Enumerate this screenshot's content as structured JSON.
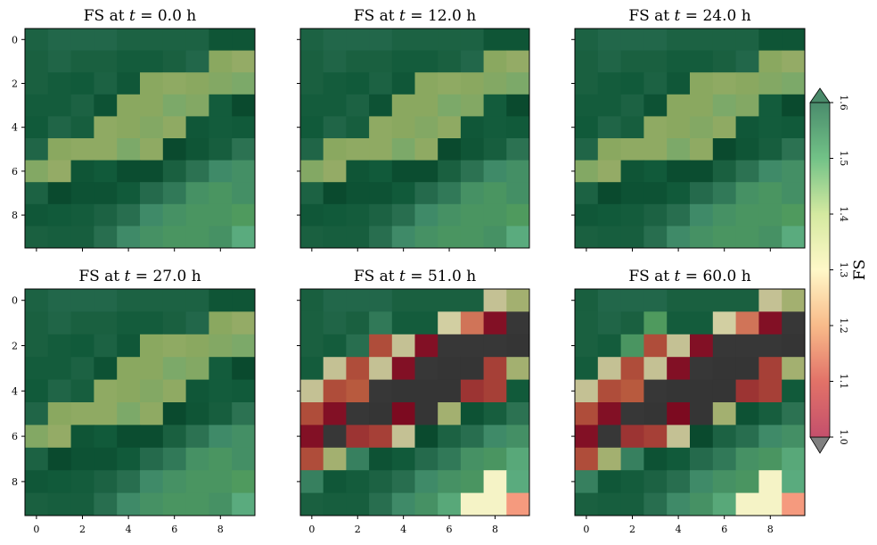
{
  "chart_data": {
    "type": "heatmap",
    "colorbar": {
      "label": "FS",
      "range": [
        1.0,
        1.6
      ],
      "ticks": [
        "1.0",
        "1.1",
        "1.2",
        "1.3",
        "1.4",
        "1.5",
        "1.6"
      ],
      "extend": "both",
      "under_color": "#808080",
      "over_color": "#4a8a6a"
    },
    "x_ticks": [
      "0",
      "2",
      "4",
      "6",
      "8"
    ],
    "y_ticks": [
      "0",
      "2",
      "4",
      "6",
      "8"
    ],
    "panels": [
      {
        "title": {
          "prefix": "FS at ",
          "var": "t",
          "suffix": " = 0.0 h"
        },
        "values": [
          [
            1.85,
            1.8,
            1.8,
            1.8,
            1.85,
            1.85,
            1.85,
            1.85,
            1.98,
            1.98
          ],
          [
            1.87,
            1.82,
            1.87,
            1.87,
            1.92,
            1.92,
            1.87,
            1.8,
            1.45,
            1.43
          ],
          [
            1.87,
            1.92,
            1.95,
            1.85,
            1.97,
            1.45,
            1.44,
            1.45,
            1.46,
            1.47
          ],
          [
            1.92,
            1.92,
            1.85,
            2.0,
            1.45,
            1.45,
            1.47,
            1.46,
            1.93,
            2.05
          ],
          [
            1.95,
            1.82,
            1.9,
            1.44,
            1.45,
            1.46,
            1.44,
            1.97,
            1.93,
            1.95
          ],
          [
            1.82,
            1.45,
            1.44,
            1.44,
            1.47,
            1.44,
            2.05,
            1.98,
            1.9,
            1.72
          ],
          [
            1.46,
            1.43,
            1.98,
            1.95,
            2.03,
            2.03,
            1.87,
            1.72,
            1.65,
            1.63
          ],
          [
            1.85,
            2.05,
            2.0,
            2.0,
            1.95,
            1.78,
            1.7,
            1.62,
            1.6,
            1.63
          ],
          [
            1.97,
            1.95,
            1.92,
            1.85,
            1.75,
            1.65,
            1.62,
            1.6,
            1.6,
            1.58
          ],
          [
            1.87,
            1.9,
            1.9,
            1.75,
            1.65,
            1.62,
            1.6,
            1.6,
            1.62,
            1.52
          ]
        ]
      },
      {
        "title": {
          "prefix": "FS at ",
          "var": "t",
          "suffix": " = 12.0 h"
        },
        "values": [
          [
            1.85,
            1.8,
            1.8,
            1.8,
            1.85,
            1.85,
            1.85,
            1.85,
            1.98,
            1.98
          ],
          [
            1.87,
            1.82,
            1.87,
            1.87,
            1.92,
            1.92,
            1.87,
            1.8,
            1.45,
            1.43
          ],
          [
            1.87,
            1.92,
            1.95,
            1.85,
            1.97,
            1.45,
            1.44,
            1.45,
            1.46,
            1.47
          ],
          [
            1.92,
            1.92,
            1.85,
            2.0,
            1.45,
            1.45,
            1.47,
            1.46,
            1.93,
            2.05
          ],
          [
            1.95,
            1.82,
            1.9,
            1.44,
            1.45,
            1.46,
            1.44,
            1.97,
            1.93,
            1.95
          ],
          [
            1.82,
            1.45,
            1.44,
            1.44,
            1.47,
            1.44,
            2.05,
            1.98,
            1.9,
            1.72
          ],
          [
            1.46,
            1.43,
            1.98,
            1.95,
            2.03,
            2.03,
            1.87,
            1.72,
            1.65,
            1.63
          ],
          [
            1.85,
            2.05,
            2.0,
            2.0,
            1.95,
            1.78,
            1.7,
            1.62,
            1.6,
            1.63
          ],
          [
            1.97,
            1.95,
            1.92,
            1.85,
            1.75,
            1.65,
            1.62,
            1.6,
            1.6,
            1.58
          ],
          [
            1.87,
            1.9,
            1.9,
            1.75,
            1.65,
            1.62,
            1.6,
            1.6,
            1.62,
            1.52
          ]
        ]
      },
      {
        "title": {
          "prefix": "FS at ",
          "var": "t",
          "suffix": " = 24.0 h"
        },
        "values": [
          [
            1.85,
            1.8,
            1.8,
            1.8,
            1.85,
            1.85,
            1.85,
            1.85,
            1.98,
            1.98
          ],
          [
            1.87,
            1.82,
            1.87,
            1.87,
            1.92,
            1.92,
            1.87,
            1.8,
            1.45,
            1.43
          ],
          [
            1.87,
            1.92,
            1.95,
            1.85,
            1.97,
            1.45,
            1.44,
            1.45,
            1.46,
            1.47
          ],
          [
            1.92,
            1.92,
            1.85,
            2.0,
            1.45,
            1.45,
            1.47,
            1.46,
            1.93,
            2.05
          ],
          [
            1.95,
            1.82,
            1.9,
            1.44,
            1.45,
            1.46,
            1.44,
            1.97,
            1.93,
            1.95
          ],
          [
            1.82,
            1.45,
            1.44,
            1.44,
            1.47,
            1.44,
            2.05,
            1.98,
            1.9,
            1.72
          ],
          [
            1.46,
            1.43,
            1.98,
            1.95,
            2.03,
            2.03,
            1.87,
            1.72,
            1.65,
            1.63
          ],
          [
            1.85,
            2.05,
            2.0,
            2.0,
            1.95,
            1.78,
            1.7,
            1.62,
            1.6,
            1.63
          ],
          [
            1.97,
            1.95,
            1.92,
            1.85,
            1.75,
            1.65,
            1.62,
            1.6,
            1.6,
            1.58
          ],
          [
            1.87,
            1.9,
            1.9,
            1.75,
            1.65,
            1.62,
            1.6,
            1.6,
            1.62,
            1.52
          ]
        ]
      },
      {
        "title": {
          "prefix": "FS at ",
          "var": "t",
          "suffix": " = 27.0 h"
        },
        "values": [
          [
            1.85,
            1.8,
            1.8,
            1.8,
            1.85,
            1.85,
            1.85,
            1.85,
            1.98,
            1.98
          ],
          [
            1.87,
            1.82,
            1.87,
            1.87,
            1.92,
            1.92,
            1.87,
            1.8,
            1.45,
            1.43
          ],
          [
            1.87,
            1.92,
            1.95,
            1.85,
            1.97,
            1.45,
            1.44,
            1.45,
            1.46,
            1.47
          ],
          [
            1.92,
            1.92,
            1.85,
            2.0,
            1.45,
            1.45,
            1.47,
            1.46,
            1.93,
            2.05
          ],
          [
            1.95,
            1.82,
            1.9,
            1.44,
            1.45,
            1.46,
            1.44,
            1.97,
            1.93,
            1.95
          ],
          [
            1.82,
            1.45,
            1.44,
            1.44,
            1.47,
            1.44,
            2.05,
            1.98,
            1.9,
            1.72
          ],
          [
            1.46,
            1.43,
            1.98,
            1.95,
            2.03,
            2.03,
            1.87,
            1.72,
            1.65,
            1.63
          ],
          [
            1.85,
            2.05,
            2.0,
            2.0,
            1.95,
            1.78,
            1.7,
            1.62,
            1.6,
            1.63
          ],
          [
            1.97,
            1.95,
            1.92,
            1.85,
            1.75,
            1.65,
            1.62,
            1.6,
            1.6,
            1.58
          ],
          [
            1.87,
            1.9,
            1.9,
            1.75,
            1.65,
            1.62,
            1.6,
            1.6,
            1.62,
            1.52
          ]
        ]
      },
      {
        "title": {
          "prefix": "FS at ",
          "var": "t",
          "suffix": " = 51.0 h"
        },
        "values": [
          [
            1.88,
            1.8,
            1.8,
            1.8,
            1.87,
            1.87,
            1.87,
            1.87,
            1.33,
            1.4
          ],
          [
            1.87,
            1.82,
            1.87,
            1.7,
            1.92,
            1.92,
            1.31,
            1.12,
            1.02,
            0.9
          ],
          [
            1.87,
            1.92,
            1.75,
            1.09,
            1.33,
            1.02,
            0.9,
            0.9,
            0.9,
            0.88
          ],
          [
            1.92,
            1.33,
            1.09,
            1.33,
            1.02,
            0.9,
            0.87,
            0.87,
            1.08,
            1.4
          ],
          [
            1.33,
            1.09,
            1.1,
            0.9,
            0.88,
            0.88,
            0.88,
            1.07,
            1.08,
            1.95
          ],
          [
            1.09,
            1.02,
            0.9,
            0.88,
            1.0,
            0.88,
            1.4,
            2.0,
            1.9,
            1.72
          ],
          [
            1.02,
            0.9,
            1.07,
            1.08,
            1.33,
            2.05,
            1.85,
            1.75,
            1.65,
            1.63
          ],
          [
            1.09,
            1.4,
            1.68,
            2.0,
            1.95,
            1.78,
            1.7,
            1.62,
            1.6,
            1.53
          ],
          [
            1.68,
            1.97,
            1.92,
            1.85,
            1.75,
            1.65,
            1.62,
            1.6,
            1.26,
            1.52
          ],
          [
            1.87,
            1.9,
            1.9,
            1.75,
            1.65,
            1.62,
            1.53,
            1.26,
            1.26,
            1.15
          ]
        ]
      },
      {
        "title": {
          "prefix": "FS at ",
          "var": "t",
          "suffix": " = 60.0 h"
        },
        "values": [
          [
            1.88,
            1.8,
            1.8,
            1.8,
            1.87,
            1.87,
            1.87,
            1.87,
            1.33,
            1.4
          ],
          [
            1.87,
            1.82,
            1.87,
            1.58,
            1.92,
            1.92,
            1.31,
            1.12,
            1.02,
            0.9
          ],
          [
            1.87,
            1.92,
            1.6,
            1.09,
            1.33,
            1.02,
            0.9,
            0.9,
            0.9,
            0.88
          ],
          [
            1.92,
            1.33,
            1.09,
            1.33,
            1.02,
            0.9,
            0.87,
            0.87,
            1.08,
            1.4
          ],
          [
            1.33,
            1.09,
            1.1,
            0.9,
            0.88,
            0.88,
            0.88,
            1.07,
            1.08,
            1.95
          ],
          [
            1.09,
            1.02,
            0.9,
            0.88,
            1.0,
            0.88,
            1.4,
            2.0,
            1.9,
            1.72
          ],
          [
            1.02,
            0.9,
            1.07,
            1.08,
            1.33,
            2.05,
            1.85,
            1.75,
            1.65,
            1.63
          ],
          [
            1.09,
            1.4,
            1.68,
            2.0,
            1.95,
            1.78,
            1.7,
            1.62,
            1.6,
            1.53
          ],
          [
            1.68,
            1.97,
            1.92,
            1.85,
            1.75,
            1.65,
            1.62,
            1.6,
            1.26,
            1.52
          ],
          [
            1.87,
            1.9,
            1.9,
            1.75,
            1.65,
            1.62,
            1.53,
            1.26,
            1.26,
            1.15
          ]
        ]
      }
    ]
  }
}
